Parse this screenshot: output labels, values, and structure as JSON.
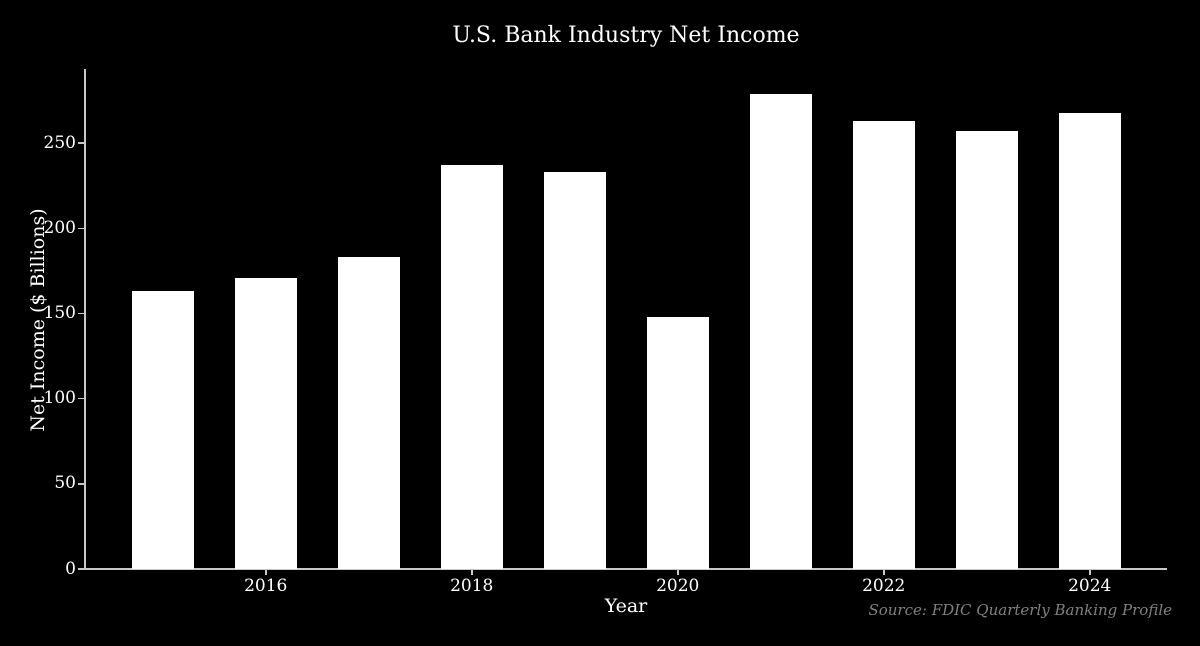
{
  "chart_data": {
    "type": "bar",
    "title": "U.S. Bank Industry Net Income",
    "xlabel": "Year",
    "ylabel": "Net Income ($ Billions)",
    "source_note": "Source: FDIC Quarterly Banking Profile",
    "categories": [
      2015,
      2016,
      2017,
      2018,
      2019,
      2020,
      2021,
      2022,
      2023,
      2024
    ],
    "values": [
      163,
      171,
      183,
      237,
      233,
      148,
      279,
      263,
      257,
      268
    ],
    "yticks": [
      0,
      50,
      100,
      150,
      200,
      250
    ],
    "xticks": [
      2016,
      2018,
      2020,
      2022,
      2024
    ],
    "ylim": [
      0,
      293
    ],
    "xlim": [
      2014.25,
      2024.75
    ],
    "bar_width_units": 0.6,
    "grid": false,
    "legend": "none",
    "colors": {
      "background": "#000000",
      "bar": "#ffffff",
      "text": "#ffffff",
      "axis": "#c8c8c8",
      "source_text": "#808080"
    }
  }
}
